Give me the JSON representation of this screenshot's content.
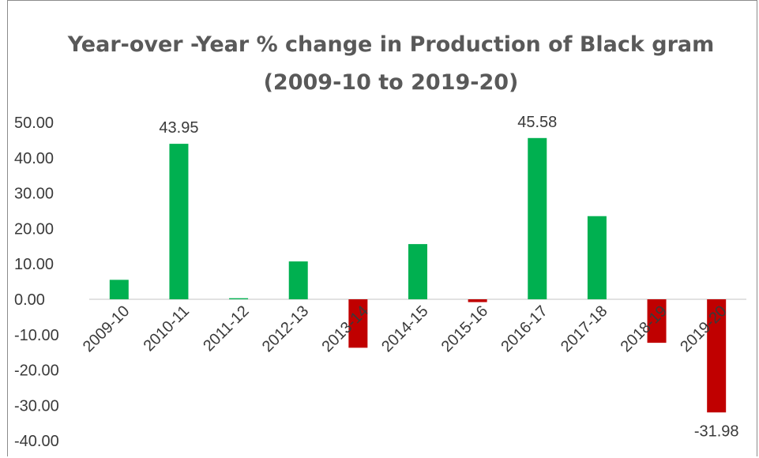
{
  "chart_data": {
    "type": "bar",
    "title": "Year-over -Year % change  in Production of Black gram (2009-10 to 2019-20)",
    "categories": [
      "2009-10",
      "2010-11",
      "2011-12",
      "2012-13",
      "2013-14",
      "2014-15",
      "2015-16",
      "2016-17",
      "2017-18",
      "2018-19",
      "2019-20"
    ],
    "values": [
      5.5,
      43.95,
      0.3,
      10.7,
      -13.7,
      15.6,
      -0.8,
      45.58,
      23.5,
      -12.3,
      -31.98
    ],
    "data_labels": {
      "1": "43.95",
      "7": "45.58",
      "10": "-31.98"
    },
    "yticks": [
      "50.00",
      "40.00",
      "30.00",
      "20.00",
      "10.00",
      "0.00",
      "-10.00",
      "-20.00",
      "-30.00",
      "-40.00"
    ],
    "ylim": [
      -40,
      50
    ],
    "grid": false,
    "colors": {
      "positive": "#00b050",
      "negative": "#c00000",
      "axis": "#d9d9d9",
      "text": "#3a3a3a",
      "title": "#595959"
    }
  }
}
